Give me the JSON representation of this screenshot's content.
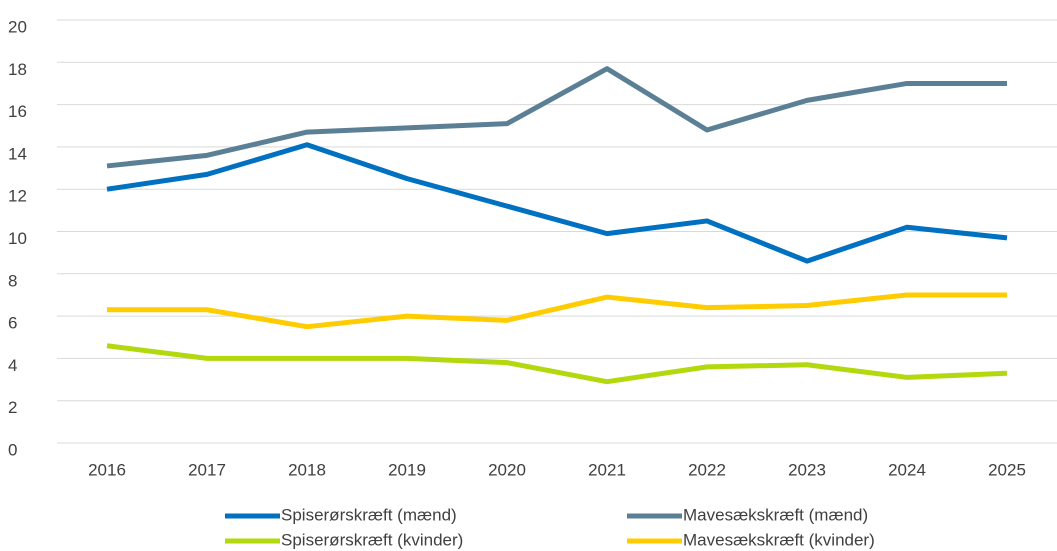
{
  "chart_data": {
    "type": "line",
    "categories": [
      "2016",
      "2017",
      "2018",
      "2019",
      "2020",
      "2021",
      "2022",
      "2023",
      "2024",
      "2025"
    ],
    "series": [
      {
        "name": "Spiserørskræft (mænd)",
        "color": "#0070c0",
        "values": [
          12.0,
          12.7,
          14.1,
          12.5,
          11.2,
          9.9,
          10.5,
          8.6,
          10.2,
          9.7
        ]
      },
      {
        "name": "Mavesækskræft (mænd)",
        "color": "#5b7f95",
        "values": [
          13.1,
          13.6,
          14.7,
          14.9,
          15.1,
          17.7,
          14.8,
          16.2,
          17.0,
          17.0
        ]
      },
      {
        "name": "Spiserørskræft (kvinder)",
        "color": "#b2d80e",
        "values": [
          4.6,
          4.0,
          4.0,
          4.0,
          3.8,
          2.9,
          3.6,
          3.7,
          3.1,
          3.3
        ]
      },
      {
        "name": "Mavesækskræft (kvinder)",
        "color": "#ffcc00",
        "values": [
          6.3,
          6.3,
          5.5,
          6.0,
          5.8,
          6.9,
          6.4,
          6.5,
          7.0,
          7.0
        ]
      }
    ],
    "ylim": [
      0,
      20
    ],
    "yticks": [
      0,
      2,
      4,
      6,
      8,
      10,
      12,
      14,
      16,
      18,
      20
    ],
    "grid": true,
    "legend": "bottom"
  }
}
